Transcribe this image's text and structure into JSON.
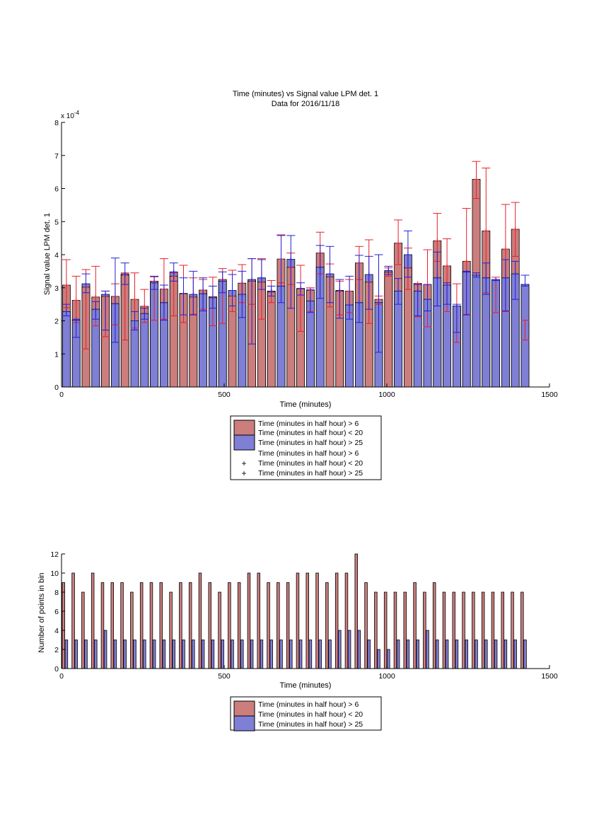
{
  "colors": {
    "red_bar": "#cc7d7d",
    "blue_bar": "#7f7fd6",
    "red_err": "#e8202a",
    "blue_err": "#2020d8"
  },
  "chart_data": [
    {
      "type": "bar",
      "title": "Time (minutes) vs Signal value LPM det. 1",
      "subtitle": "Data for 2016/11/18",
      "xlabel": "Time (minutes)",
      "ylabel": "Signal value LPM det. 1",
      "y_exponent_label": "x 10",
      "y_exponent_power": "-4",
      "xlim": [
        0,
        1500
      ],
      "ylim": [
        0,
        8
      ],
      "y_scale_factor": 0.0001,
      "xticks": [
        "0",
        "500",
        "1000",
        "1500"
      ],
      "yticks": [
        "0",
        "1",
        "2",
        "3",
        "4",
        "5",
        "6",
        "7",
        "8"
      ],
      "grid": false,
      "bar_width_minutes": 24,
      "legend": {
        "placement": "below",
        "entries": [
          {
            "symbol": "patch-red",
            "text": "Time (minutes in half hour) > 6"
          },
          {
            "symbol": "",
            "text": "Time (minutes in half hour) < 20"
          },
          {
            "symbol": "patch-blue",
            "text": "Time (minutes in half hour) > 25"
          },
          {
            "symbol": "",
            "text": "Time (minutes in half hour) > 6"
          },
          {
            "symbol": "plus-red",
            "text": "Time (minutes in half hour) < 20"
          },
          {
            "symbol": "plus-blue",
            "text": "Time (minutes in half hour) > 25"
          }
        ]
      },
      "x": [
        15,
        45,
        75,
        105,
        135,
        165,
        195,
        225,
        255,
        285,
        315,
        345,
        375,
        405,
        435,
        465,
        495,
        525,
        555,
        585,
        615,
        645,
        675,
        705,
        735,
        765,
        795,
        825,
        855,
        885,
        915,
        945,
        975,
        1005,
        1035,
        1065,
        1095,
        1125,
        1155,
        1185,
        1215,
        1245,
        1275,
        1305,
        1335,
        1365,
        1395,
        1425
      ],
      "series": [
        {
          "name": "Time (minutes in half hour) > 6  Time (minutes in half hour) < 20",
          "values": [
            3.08,
            2.62,
            3.02,
            2.72,
            2.74,
            2.74,
            3.38,
            2.65,
            2.44,
            3.2,
            2.96,
            3.35,
            2.82,
            2.72,
            2.93,
            2.73,
            3.25,
            2.75,
            3.14,
            3.2,
            3.17,
            2.87,
            3.87,
            3.62,
            2.97,
            2.92,
            4.05,
            3.33,
            2.9,
            2.9,
            3.75,
            3.17,
            2.65,
            3.47,
            4.35,
            3.6,
            3.13,
            3.1,
            4.42,
            3.66,
            2.45,
            3.8,
            6.28,
            4.72,
            3.25,
            4.17,
            4.77,
            3.1
          ],
          "err_low": [
            2.4,
            1.95,
            1.15,
            1.85,
            1.52,
            1.88,
            1.42,
            1.78,
            1.95,
            2.02,
            2.05,
            2.15,
            1.95,
            2.2,
            2.35,
            1.85,
            1.92,
            2.28,
            2.55,
            2.5,
            2.05,
            2.55,
            3.15,
            3.1,
            1.68,
            2.28,
            3.42,
            2.42,
            2.18,
            2.25,
            3.25,
            1.92,
            2.5,
            3.35,
            3.7,
            2.95,
            2.12,
            1.82,
            3.8,
            2.28,
            1.35,
            2.2,
            5.7,
            2.85,
            2.25,
            2.28,
            3.95,
            1.42
          ],
          "err_high": [
            3.85,
            3.35,
            3.55,
            3.65,
            2.9,
            3.12,
            3.45,
            3.45,
            2.95,
            3.33,
            3.88,
            3.45,
            3.68,
            3.3,
            3.25,
            3.32,
            3.58,
            3.53,
            3.7,
            3.88,
            3.88,
            3.22,
            4.6,
            4.05,
            3.68,
            3.0,
            4.68,
            3.72,
            3.2,
            3.25,
            4.25,
            4.45,
            2.75,
            3.6,
            5.05,
            4.2,
            3.1,
            4.15,
            5.25,
            4.48,
            3.12,
            5.4,
            6.82,
            6.62,
            3.32,
            5.52,
            5.58,
            2.02
          ]
        },
        {
          "name": "Time (minutes in half hour) > 25",
          "values": [
            2.28,
            2.02,
            3.12,
            2.35,
            2.8,
            2.52,
            3.42,
            2.0,
            2.22,
            3.15,
            2.55,
            3.48,
            2.83,
            2.8,
            2.82,
            2.7,
            3.2,
            2.92,
            2.8,
            3.25,
            3.3,
            2.9,
            3.05,
            3.86,
            2.98,
            2.6,
            3.62,
            3.42,
            2.92,
            2.48,
            2.55,
            3.4,
            2.55,
            3.52,
            2.9,
            4.0,
            2.9,
            2.65,
            3.3,
            3.08,
            2.45,
            3.48,
            3.38,
            3.3,
            3.25,
            3.3,
            3.42,
            3.1
          ],
          "err_low": [
            2.15,
            1.5,
            2.85,
            2.05,
            1.72,
            1.35,
            3.1,
            1.72,
            2.05,
            2.95,
            2.02,
            3.2,
            2.18,
            2.18,
            2.3,
            2.38,
            2.85,
            2.45,
            2.1,
            1.3,
            2.95,
            2.75,
            2.55,
            2.38,
            2.78,
            2.25,
            2.68,
            2.55,
            2.08,
            2.05,
            1.95,
            2.35,
            1.05,
            3.4,
            2.5,
            3.32,
            2.15,
            2.3,
            2.45,
            2.5,
            1.65,
            2.18,
            3.32,
            2.8,
            3.22,
            2.3,
            2.65,
            3.05
          ],
          "err_high": [
            2.5,
            2.05,
            3.42,
            2.58,
            2.9,
            3.9,
            3.75,
            2.28,
            2.38,
            3.35,
            3.08,
            3.75,
            3.3,
            3.5,
            3.3,
            3.05,
            3.48,
            3.4,
            3.5,
            3.88,
            3.85,
            3.05,
            4.58,
            4.58,
            3.15,
            2.95,
            4.28,
            4.25,
            3.25,
            3.35,
            3.98,
            3.95,
            4.0,
            3.65,
            3.28,
            4.72,
            3.1,
            3.1,
            4.08,
            3.15,
            2.5,
            3.5,
            3.45,
            3.75,
            3.25,
            3.85,
            3.8,
            3.38
          ]
        }
      ]
    },
    {
      "type": "bar",
      "title": "",
      "xlabel": "Time (minutes)",
      "ylabel": "Number of points in bin",
      "xlim": [
        0,
        1500
      ],
      "ylim": [
        0,
        12
      ],
      "xticks": [
        "0",
        "500",
        "1000",
        "1500"
      ],
      "yticks": [
        "0",
        "2",
        "4",
        "6",
        "8",
        "10",
        "12"
      ],
      "grid": false,
      "bar_width_minutes": 8,
      "legend": {
        "placement": "below",
        "entries": [
          {
            "symbol": "patch-red",
            "text": "Time (minutes in half hour) > 6"
          },
          {
            "symbol": "",
            "text": "Time (minutes in half hour) < 20"
          },
          {
            "symbol": "patch-blue",
            "text": "Time (minutes in half hour) > 25"
          }
        ]
      },
      "series": [
        {
          "name": "Time (minutes in half hour) > 6  Time (minutes in half hour) < 20",
          "x": [
            6,
            36,
            66,
            96,
            126,
            156,
            186,
            216,
            246,
            276,
            306,
            336,
            366,
            396,
            426,
            456,
            486,
            516,
            546,
            576,
            606,
            636,
            666,
            696,
            726,
            756,
            786,
            816,
            846,
            876,
            906,
            936,
            966,
            996,
            1026,
            1056,
            1086,
            1116,
            1146,
            1176,
            1206,
            1236,
            1266,
            1296,
            1326,
            1356,
            1386,
            1416
          ],
          "values": [
            9,
            10,
            8,
            10,
            9,
            9,
            9,
            8,
            9,
            9,
            9,
            8,
            9,
            9,
            10,
            9,
            8,
            9,
            9,
            10,
            10,
            9,
            9,
            9,
            10,
            10,
            10,
            9,
            10,
            10,
            12,
            9,
            8,
            8,
            8,
            8,
            9,
            8,
            9,
            8,
            8,
            8,
            8,
            8,
            8,
            8,
            8,
            8
          ]
        },
        {
          "name": "Time (minutes in half hour) > 25",
          "x": [
            15,
            45,
            75,
            105,
            135,
            165,
            195,
            225,
            255,
            285,
            315,
            345,
            375,
            405,
            435,
            465,
            495,
            525,
            555,
            585,
            615,
            645,
            675,
            705,
            735,
            765,
            795,
            825,
            855,
            885,
            915,
            945,
            975,
            1005,
            1035,
            1065,
            1095,
            1125,
            1155,
            1185,
            1215,
            1245,
            1275,
            1305,
            1335,
            1365,
            1395,
            1425
          ],
          "values": [
            3,
            3,
            3,
            3,
            4,
            3,
            3,
            3,
            3,
            3,
            3,
            3,
            3,
            3,
            3,
            3,
            3,
            3,
            3,
            3,
            3,
            3,
            3,
            3,
            3,
            3,
            3,
            3,
            4,
            4,
            4,
            3,
            2,
            2,
            3,
            3,
            3,
            4,
            3,
            3,
            3,
            3,
            3,
            3,
            3,
            3,
            3,
            3
          ]
        }
      ]
    }
  ]
}
